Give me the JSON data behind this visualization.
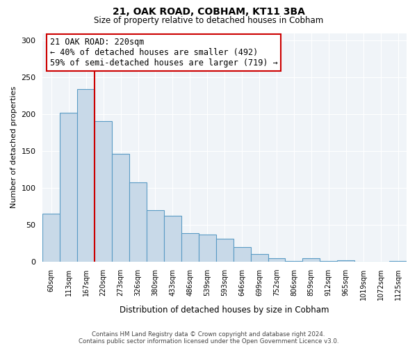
{
  "title": "21, OAK ROAD, COBHAM, KT11 3BA",
  "subtitle": "Size of property relative to detached houses in Cobham",
  "xlabel": "Distribution of detached houses by size in Cobham",
  "ylabel": "Number of detached properties",
  "bin_labels": [
    "60sqm",
    "113sqm",
    "167sqm",
    "220sqm",
    "273sqm",
    "326sqm",
    "380sqm",
    "433sqm",
    "486sqm",
    "539sqm",
    "593sqm",
    "646sqm",
    "699sqm",
    "752sqm",
    "806sqm",
    "859sqm",
    "912sqm",
    "965sqm",
    "1019sqm",
    "1072sqm",
    "1125sqm"
  ],
  "bar_heights": [
    65,
    202,
    234,
    191,
    146,
    108,
    70,
    62,
    39,
    37,
    31,
    20,
    10,
    5,
    1,
    5,
    1,
    2,
    0,
    0,
    1
  ],
  "bar_color": "#c8d9e8",
  "bar_edge_color": "#5a9bc4",
  "vline_color": "#cc0000",
  "annotation_text": "21 OAK ROAD: 220sqm\n← 40% of detached houses are smaller (492)\n59% of semi-detached houses are larger (719) →",
  "annotation_box_color": "white",
  "annotation_box_edge": "#cc0000",
  "ylim": [
    0,
    310
  ],
  "yticks": [
    0,
    50,
    100,
    150,
    200,
    250,
    300
  ],
  "footer_line1": "Contains HM Land Registry data © Crown copyright and database right 2024.",
  "footer_line2": "Contains public sector information licensed under the Open Government Licence v3.0.",
  "bg_color": "#f0f4f8"
}
